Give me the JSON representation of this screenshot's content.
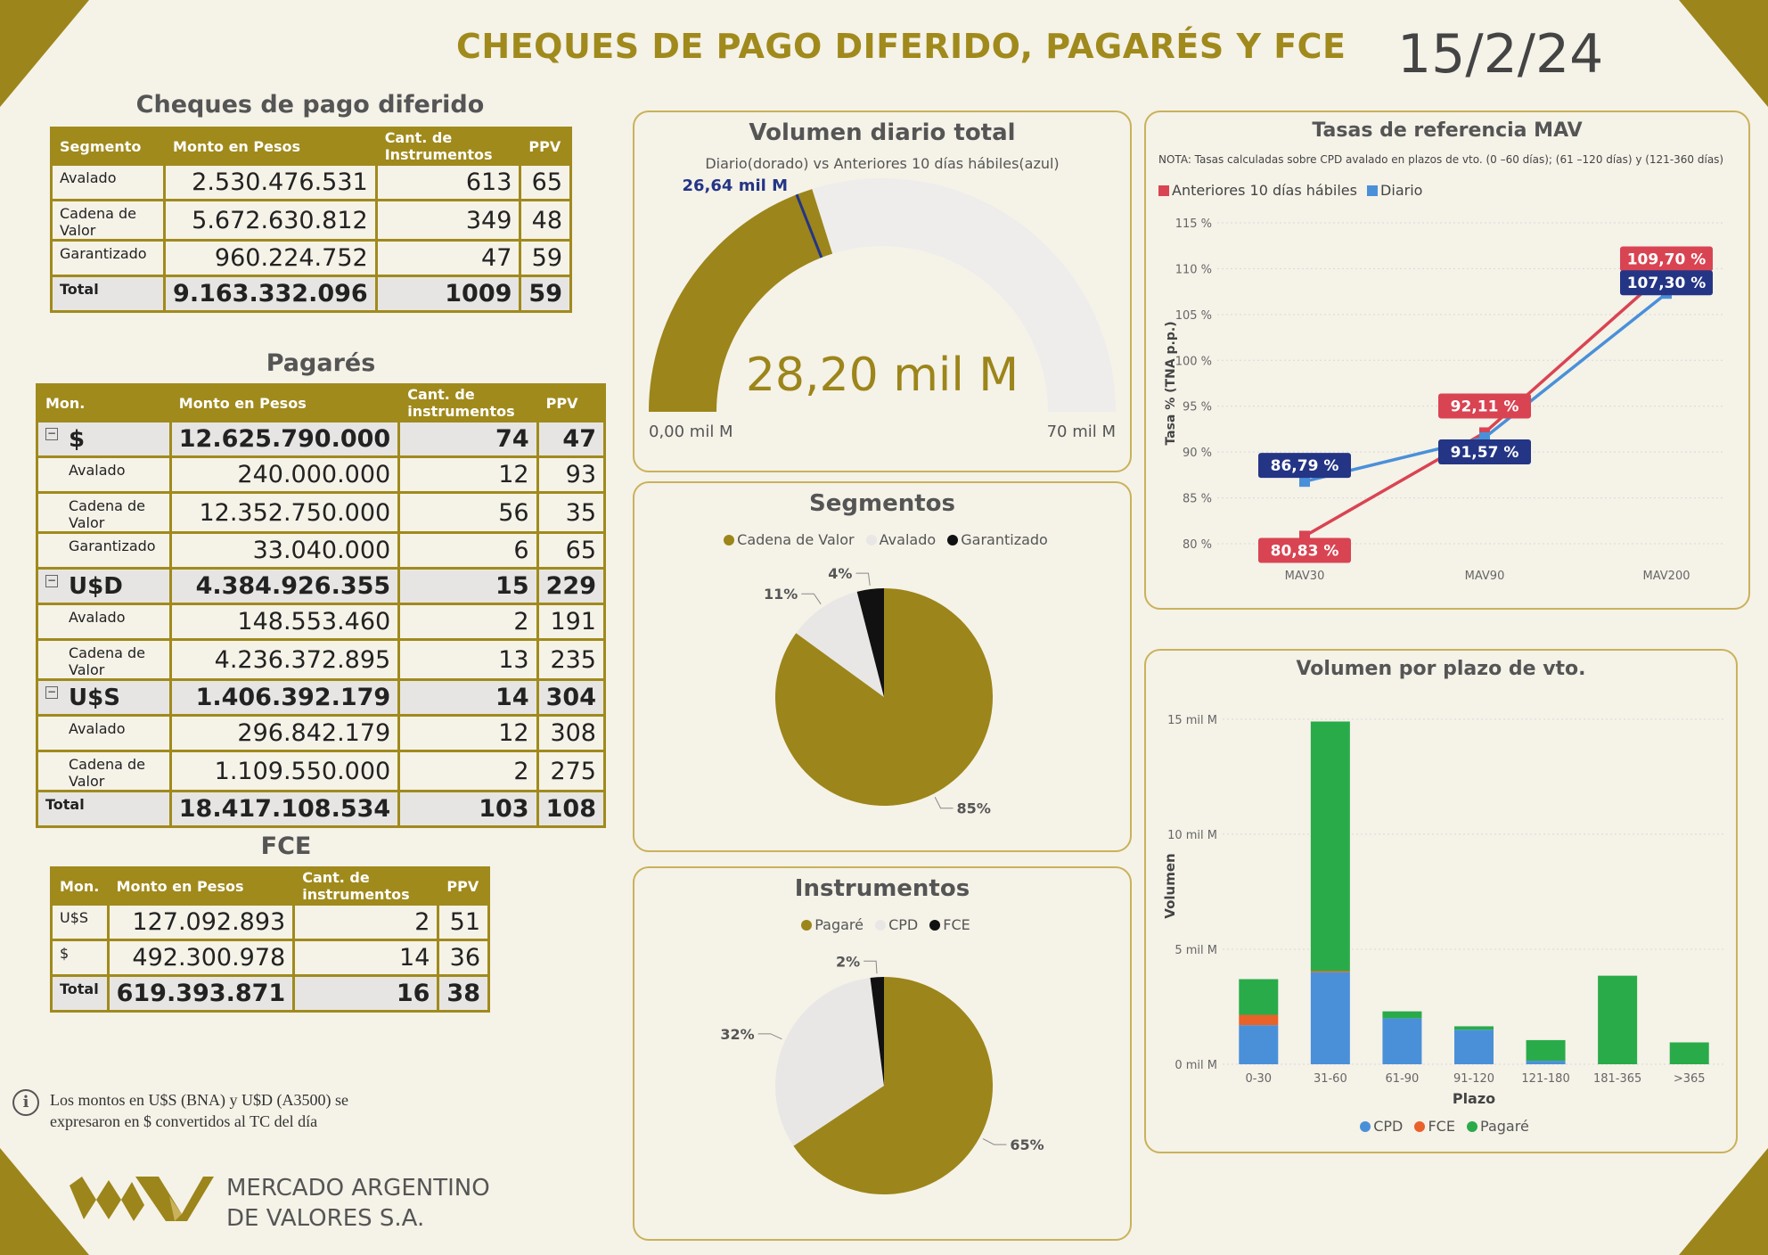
{
  "header": {
    "title": "CHEQUES DE PAGO DIFERIDO, PAGARÉS Y FCE",
    "date": "15/2/24"
  },
  "cpd": {
    "title": "Cheques de pago diferido",
    "headers": [
      "Segmento",
      "Monto en Pesos",
      "Cant. de Instrumentos",
      "PPV"
    ],
    "rows": [
      {
        "seg": "Avalado",
        "monto": "2.530.476.531",
        "cant": "613",
        "ppv": "65"
      },
      {
        "seg": "Cadena de Valor",
        "monto": "5.672.630.812",
        "cant": "349",
        "ppv": "48"
      },
      {
        "seg": "Garantizado",
        "monto": "960.224.752",
        "cant": "47",
        "ppv": "59"
      }
    ],
    "total": {
      "seg": "Total",
      "monto": "9.163.332.096",
      "cant": "1009",
      "ppv": "59"
    }
  },
  "pagares": {
    "title": "Pagarés",
    "headers": [
      "Mon.",
      "Monto en Pesos",
      "Cant. de instrumentos",
      "PPV"
    ],
    "groups": [
      {
        "mon": "$",
        "monto": "12.625.790.000",
        "cant": "74",
        "ppv": "47",
        "rows": [
          {
            "seg": "Avalado",
            "monto": "240.000.000",
            "cant": "12",
            "ppv": "93"
          },
          {
            "seg": "Cadena de Valor",
            "monto": "12.352.750.000",
            "cant": "56",
            "ppv": "35"
          },
          {
            "seg": "Garantizado",
            "monto": "33.040.000",
            "cant": "6",
            "ppv": "65"
          }
        ]
      },
      {
        "mon": "U$D",
        "monto": "4.384.926.355",
        "cant": "15",
        "ppv": "229",
        "rows": [
          {
            "seg": "Avalado",
            "monto": "148.553.460",
            "cant": "2",
            "ppv": "191"
          },
          {
            "seg": "Cadena de Valor",
            "monto": "4.236.372.895",
            "cant": "13",
            "ppv": "235"
          }
        ]
      },
      {
        "mon": "U$S",
        "monto": "1.406.392.179",
        "cant": "14",
        "ppv": "304",
        "rows": [
          {
            "seg": "Avalado",
            "monto": "296.842.179",
            "cant": "12",
            "ppv": "308"
          },
          {
            "seg": "Cadena de Valor",
            "monto": "1.109.550.000",
            "cant": "2",
            "ppv": "275"
          }
        ]
      }
    ],
    "total": {
      "seg": "Total",
      "monto": "18.417.108.534",
      "cant": "103",
      "ppv": "108"
    }
  },
  "fce": {
    "title": "FCE",
    "headers": [
      "Mon.",
      "Monto en Pesos",
      "Cant. de instrumentos",
      "PPV"
    ],
    "rows": [
      {
        "seg": "U$S",
        "monto": "127.092.893",
        "cant": "2",
        "ppv": "51"
      },
      {
        "seg": "$",
        "monto": "492.300.978",
        "cant": "14",
        "ppv": "36"
      }
    ],
    "total": {
      "seg": "Total",
      "monto": "619.393.871",
      "cant": "16",
      "ppv": "38"
    }
  },
  "note": {
    "line1": "Los montos en U$S (BNA) y U$D (A3500) se",
    "line2": "expresaron en $ convertidos al TC del día"
  },
  "logo": {
    "line1": "MERCADO ARGENTINO",
    "line2": "DE VALORES S.A."
  },
  "colors": {
    "gold": "#9c851a",
    "blue": "#4a90d9",
    "red": "#d94452",
    "navy": "#243585",
    "green": "#2aab4a",
    "orange": "#e8622a",
    "light": "#e8e7e5"
  },
  "chart_data": [
    {
      "type": "gauge",
      "title": "Volumen diario total",
      "subtitle": "Diario(dorado) vs Anteriores 10 días hábiles(azul)",
      "value": 28.2,
      "value_label": "28,20 mil M",
      "target": 26.64,
      "target_label": "26,64 mil M",
      "min": 0,
      "max": 70,
      "min_label": "0,00 mil M",
      "max_label": "70 mil M"
    },
    {
      "type": "pie",
      "title": "Segmentos",
      "categories": [
        "Cadena de Valor",
        "Avalado",
        "Garantizado"
      ],
      "values": [
        85,
        11,
        4
      ],
      "labels": [
        "85%",
        "11%",
        "4%"
      ],
      "colors": [
        "#9c851a",
        "#e8e7e5",
        "#111111"
      ]
    },
    {
      "type": "pie",
      "title": "Instrumentos",
      "categories": [
        "Pagaré",
        "CPD",
        "FCE"
      ],
      "values": [
        65,
        32,
        2
      ],
      "labels": [
        "65%",
        "32%",
        "2%"
      ],
      "colors": [
        "#9c851a",
        "#e8e7e5",
        "#111111"
      ]
    },
    {
      "type": "line",
      "title": "Tasas de referencia MAV",
      "note": "NOTA: Tasas calculadas sobre CPD avalado en plazos de vto. (0 –60 días); (61 –120 días) y (121-360 días)",
      "ylabel": "Tasa % (TNA p.p.)",
      "categories": [
        "MAV30",
        "MAV90",
        "MAV200"
      ],
      "ylim": [
        80,
        115
      ],
      "yticks": [
        80,
        85,
        90,
        95,
        100,
        105,
        110,
        115
      ],
      "ytick_labels": [
        "80 %",
        "85 %",
        "90 %",
        "95 %",
        "100 %",
        "105 %",
        "110 %",
        "115 %"
      ],
      "series": [
        {
          "name": "Anteriores 10 días hábiles",
          "color": "#d94452",
          "values": [
            80.83,
            92.11,
            109.7
          ],
          "labels": [
            "80,83 %",
            "92,11 %",
            "109,70 %"
          ]
        },
        {
          "name": "Diario",
          "color": "#4a90d9",
          "label_color": "#243585",
          "values": [
            86.79,
            91.57,
            107.3
          ],
          "labels": [
            "86,79 %",
            "91,57 %",
            "107,30 %"
          ]
        }
      ]
    },
    {
      "type": "bar",
      "stacked": true,
      "title": "Volumen por plazo de vto.",
      "xlabel": "Plazo",
      "ylabel": "Volumen",
      "categories": [
        "0-30",
        "31-60",
        "61-90",
        "91-120",
        "121-180",
        "181-365",
        ">365"
      ],
      "ylim": [
        0,
        15.5
      ],
      "yticks": [
        0,
        5,
        10,
        15
      ],
      "ytick_labels": [
        "0 mil M",
        "5 mil M",
        "10 mil M",
        "15 mil M"
      ],
      "series": [
        {
          "name": "CPD",
          "color": "#4a90d9",
          "values": [
            1.7,
            4.0,
            2.0,
            1.5,
            0.15,
            0,
            0
          ]
        },
        {
          "name": "FCE",
          "color": "#e8622a",
          "values": [
            0.45,
            0.05,
            0,
            0,
            0,
            0,
            0
          ]
        },
        {
          "name": "Pagaré",
          "color": "#2aab4a",
          "values": [
            1.55,
            10.85,
            0.3,
            0.15,
            0.9,
            3.85,
            0.95
          ]
        }
      ]
    }
  ]
}
